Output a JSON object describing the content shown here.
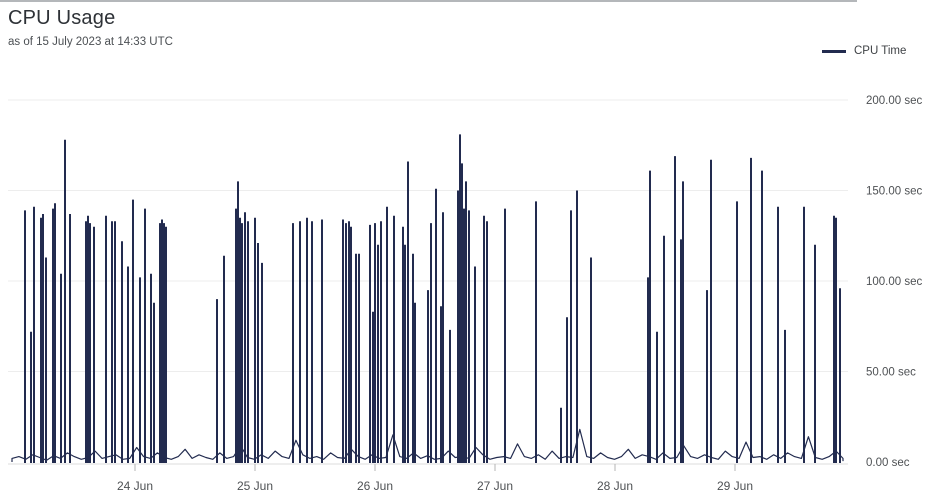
{
  "page": {
    "title": "CPU Usage",
    "subtitle": "as of 15 July 2023 at 14:33 UTC"
  },
  "legend": {
    "label": "CPU Time",
    "color": "#222b4f"
  },
  "chart_data": {
    "type": "line",
    "title": "CPU Usage",
    "subtitle": "as of 15 July 2023 at 14:33 UTC",
    "series_name": "CPU Time",
    "unit": "sec",
    "line_color": "#222b4f",
    "grid_color": "#ededed",
    "axis_line_color": "#dcdcdc",
    "tick_color": "#b5b5b5",
    "label_color": "#4e5154",
    "ylim": [
      0,
      200
    ],
    "y_tick_values": [
      0,
      50,
      100,
      150,
      200
    ],
    "y_ticks": [
      "0.00 sec",
      "50.00 sec",
      "100.00 sec",
      "150.00 sec",
      "200.00 sec"
    ],
    "x_ticks": [
      {
        "day": 24,
        "label": "24 Jun"
      },
      {
        "day": 25,
        "label": "25 Jun"
      },
      {
        "day": 26,
        "label": "26 Jun"
      },
      {
        "day": 27,
        "label": "27 Jun"
      },
      {
        "day": 28,
        "label": "28 Jun"
      },
      {
        "day": 29,
        "label": "29 Jun"
      }
    ],
    "x_range_days": [
      22.975,
      29.9
    ],
    "legend_position": "top-right",
    "grid": "horizontal-only",
    "baseline_noise_sec": [
      2,
      3,
      1.5,
      4,
      2.5,
      1,
      3.5,
      2,
      5,
      3,
      1.5,
      2.5,
      6,
      2,
      3,
      4,
      1.5,
      2,
      8,
      3,
      2,
      5,
      2.5,
      1.5,
      3,
      7,
      2,
      4,
      2.5,
      1.5,
      5,
      2,
      3,
      9,
      2.5,
      1.5,
      4,
      2,
      6,
      3,
      2,
      12,
      4,
      2,
      3,
      1.5,
      5,
      2.5,
      2,
      7,
      3,
      1.5,
      4,
      2,
      2.5,
      15,
      3,
      2,
      5,
      2,
      3.5,
      1.5,
      2,
      6,
      2.5,
      3,
      2,
      8,
      4,
      1.5,
      2.5,
      3,
      2,
      10,
      3,
      2,
      4,
      1.5,
      6,
      2,
      3,
      2.5,
      18,
      3,
      2,
      5,
      2.5,
      1.5,
      3,
      7,
      2,
      4,
      3,
      1.5,
      5,
      2,
      2.5,
      9,
      3,
      2,
      4,
      2.5,
      1.5,
      6,
      3,
      2,
      11,
      2.5,
      3,
      1.5,
      4,
      2,
      5,
      3,
      2,
      14,
      2.5,
      1.5,
      3,
      6,
      2
    ],
    "spikes_day_value": [
      [
        23.083,
        139
      ],
      [
        23.133,
        72
      ],
      [
        23.158,
        141
      ],
      [
        23.217,
        135
      ],
      [
        23.233,
        137
      ],
      [
        23.258,
        113
      ],
      [
        23.317,
        140
      ],
      [
        23.333,
        143
      ],
      [
        23.383,
        104
      ],
      [
        23.417,
        178
      ],
      [
        23.458,
        137
      ],
      [
        23.592,
        133
      ],
      [
        23.608,
        136
      ],
      [
        23.625,
        132
      ],
      [
        23.658,
        130
      ],
      [
        23.758,
        136
      ],
      [
        23.808,
        133
      ],
      [
        23.833,
        133
      ],
      [
        23.892,
        122
      ],
      [
        23.942,
        108
      ],
      [
        23.983,
        145
      ],
      [
        24.042,
        102
      ],
      [
        24.083,
        140
      ],
      [
        24.133,
        104
      ],
      [
        24.158,
        88
      ],
      [
        24.208,
        132
      ],
      [
        24.225,
        134
      ],
      [
        24.242,
        132
      ],
      [
        24.258,
        130
      ],
      [
        24.683,
        90
      ],
      [
        24.742,
        114
      ],
      [
        24.842,
        140
      ],
      [
        24.858,
        155
      ],
      [
        24.875,
        135
      ],
      [
        24.892,
        132
      ],
      [
        24.917,
        138
      ],
      [
        24.942,
        133
      ],
      [
        25.0,
        135
      ],
      [
        25.025,
        121
      ],
      [
        25.058,
        110
      ],
      [
        25.317,
        132
      ],
      [
        25.375,
        133
      ],
      [
        25.433,
        135
      ],
      [
        25.475,
        133
      ],
      [
        25.558,
        134
      ],
      [
        25.733,
        134
      ],
      [
        25.758,
        132
      ],
      [
        25.783,
        133
      ],
      [
        25.8,
        130
      ],
      [
        25.842,
        115
      ],
      [
        25.867,
        115
      ],
      [
        25.958,
        131
      ],
      [
        25.983,
        83
      ],
      [
        26.0,
        132
      ],
      [
        26.025,
        120
      ],
      [
        26.05,
        133
      ],
      [
        26.1,
        141
      ],
      [
        26.158,
        136
      ],
      [
        26.233,
        130
      ],
      [
        26.25,
        120
      ],
      [
        26.275,
        166
      ],
      [
        26.317,
        115
      ],
      [
        26.333,
        88
      ],
      [
        26.442,
        95
      ],
      [
        26.467,
        132
      ],
      [
        26.508,
        151
      ],
      [
        26.55,
        86
      ],
      [
        26.567,
        138
      ],
      [
        26.625,
        73
      ],
      [
        26.692,
        150
      ],
      [
        26.708,
        181
      ],
      [
        26.725,
        165
      ],
      [
        26.742,
        140
      ],
      [
        26.758,
        155
      ],
      [
        26.783,
        139
      ],
      [
        26.833,
        108
      ],
      [
        26.908,
        136
      ],
      [
        26.933,
        133
      ],
      [
        27.083,
        140
      ],
      [
        27.342,
        144
      ],
      [
        27.55,
        30
      ],
      [
        27.6,
        80
      ],
      [
        27.633,
        139
      ],
      [
        27.683,
        150
      ],
      [
        27.8,
        113
      ],
      [
        28.275,
        102
      ],
      [
        28.292,
        161
      ],
      [
        28.35,
        72
      ],
      [
        28.408,
        125
      ],
      [
        28.5,
        169
      ],
      [
        28.55,
        123
      ],
      [
        28.567,
        155
      ],
      [
        28.767,
        95
      ],
      [
        28.8,
        167
      ],
      [
        29.017,
        144
      ],
      [
        29.133,
        168
      ],
      [
        29.225,
        161
      ],
      [
        29.358,
        141
      ],
      [
        29.417,
        73
      ],
      [
        29.575,
        141
      ],
      [
        29.667,
        120
      ],
      [
        29.825,
        136
      ],
      [
        29.842,
        135
      ],
      [
        29.875,
        96
      ]
    ]
  }
}
